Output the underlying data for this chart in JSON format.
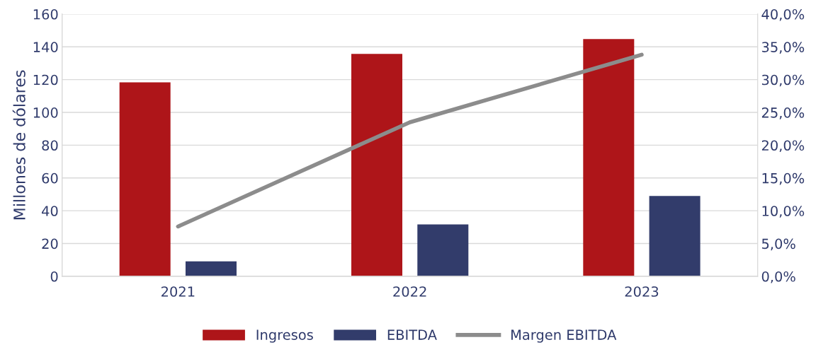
{
  "chart_data": {
    "type": "bar",
    "ylabel": "Millones de dólares",
    "categories": [
      "2021",
      "2022",
      "2023"
    ],
    "series": [
      {
        "name": "Ingresos",
        "color": "#ae1519",
        "values": [
          118.4,
          135.7,
          144.8
        ]
      },
      {
        "name": "EBITDA",
        "color": "#323c6b",
        "values": [
          9.1,
          31.7,
          49.0
        ]
      },
      {
        "name": "Margen EBITDA",
        "type": "line",
        "axis": "y2",
        "color": "#8c8c8c",
        "values": [
          7.6,
          23.5,
          33.8
        ]
      }
    ],
    "ylim": [
      0,
      160
    ],
    "yticks": [
      0,
      20,
      40,
      60,
      80,
      100,
      120,
      140,
      160
    ],
    "y2lim": [
      0,
      40
    ],
    "y2ticks": [
      {
        "value": 0,
        "label": "0,0%"
      },
      {
        "value": 5,
        "label": "5,0%"
      },
      {
        "value": 10,
        "label": "10,0%"
      },
      {
        "value": 15,
        "label": "15,0%"
      },
      {
        "value": 20,
        "label": "20,0%"
      },
      {
        "value": 25,
        "label": "25,0%"
      },
      {
        "value": 30,
        "label": "30,0%"
      },
      {
        "value": 35,
        "label": "35,0%"
      },
      {
        "value": 40,
        "label": "40,0%"
      }
    ],
    "grid": "y",
    "legend": "bottom",
    "marker": "none",
    "line_style": "solid"
  }
}
